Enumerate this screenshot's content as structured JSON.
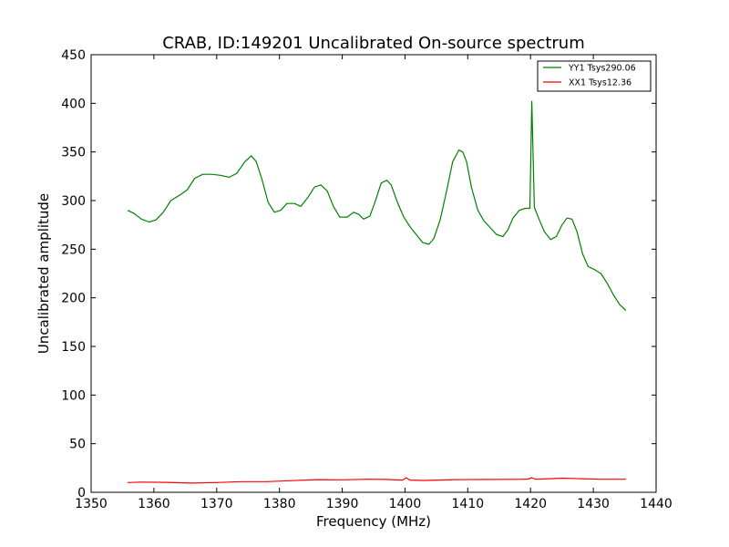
{
  "chart_data": {
    "type": "line",
    "title": "CRAB, ID:149201 Uncalibrated On-source spectrum",
    "xlabel": "Frequency (MHz)",
    "ylabel": "Uncalibrated amplitude",
    "xlim": [
      1350,
      1440
    ],
    "ylim": [
      0,
      450
    ],
    "xticks": [
      1350,
      1360,
      1370,
      1380,
      1390,
      1400,
      1410,
      1420,
      1430,
      1440
    ],
    "yticks": [
      0,
      50,
      100,
      150,
      200,
      250,
      300,
      350,
      400,
      450
    ],
    "grid": false,
    "legend": "top-right",
    "series": [
      {
        "name": "YY1 Tsys290.06",
        "color": "#008000",
        "x": [
          1355.8,
          1356.8,
          1358,
          1359.2,
          1360.3,
          1361.5,
          1362.7,
          1364.2,
          1365.3,
          1366.5,
          1367.8,
          1369.2,
          1370.6,
          1372,
          1373.2,
          1374.5,
          1375.5,
          1376.3,
          1377.2,
          1378.2,
          1379.2,
          1380.2,
          1381.2,
          1382.4,
          1383.4,
          1384.5,
          1385.6,
          1386.6,
          1387.6,
          1388.6,
          1389.6,
          1390.8,
          1391.8,
          1392.6,
          1393.4,
          1394.4,
          1395.2,
          1396.2,
          1397.1,
          1397.8,
          1398.8,
          1399.8,
          1400.8,
          1401.8,
          1402.8,
          1403.8,
          1404.6,
          1405.6,
          1406.6,
          1407.6,
          1408.6,
          1409.2,
          1409.8,
          1410.6,
          1411.6,
          1412.6,
          1413.6,
          1414.6,
          1415.6,
          1416.4,
          1417.2,
          1418.2,
          1419.2,
          1419.9,
          1420.2,
          1420.6,
          1421.4,
          1422.2,
          1423.2,
          1424.1,
          1425,
          1425.8,
          1426.6,
          1427.4,
          1428.3,
          1429.2,
          1430.2,
          1431.2,
          1432.2,
          1433.2,
          1434.2,
          1435.2
        ],
        "y": [
          290,
          287,
          281,
          278,
          280,
          288,
          300,
          306,
          311,
          323,
          327,
          327,
          326,
          324,
          328,
          340,
          346,
          340,
          322,
          298,
          288,
          290,
          297,
          297,
          294,
          303,
          314,
          316,
          310,
          294,
          283,
          283,
          288,
          286,
          281,
          284,
          298,
          318,
          321,
          316,
          298,
          283,
          273,
          265,
          257,
          255,
          261,
          280,
          309,
          340,
          352,
          350,
          340,
          313,
          290,
          279,
          272,
          265,
          263,
          270,
          282,
          290,
          292,
          292,
          402,
          293,
          280,
          268,
          260,
          263,
          275,
          282,
          281,
          268,
          245,
          232,
          229,
          225,
          215,
          203,
          193,
          187
        ]
      },
      {
        "name": "XX1 Tsys12.36",
        "color": "#ff0000",
        "x": [
          1355.8,
          1358,
          1362,
          1366,
          1370,
          1374,
          1378,
          1382,
          1386,
          1390,
          1394,
          1397,
          1399.6,
          1400.2,
          1400.8,
          1403,
          1408,
          1413,
          1418,
          1419.6,
          1420.2,
          1420.8,
          1423,
          1425,
          1428,
          1431,
          1435.2
        ],
        "y": [
          10,
          10.5,
          10.2,
          9.5,
          10,
          11,
          11,
          12,
          13,
          12.8,
          13.4,
          13.2,
          12.6,
          15,
          12.6,
          12.2,
          13,
          13.2,
          13.3,
          13.6,
          15,
          13.4,
          14,
          14.5,
          14,
          13.4,
          13.4
        ]
      }
    ]
  }
}
